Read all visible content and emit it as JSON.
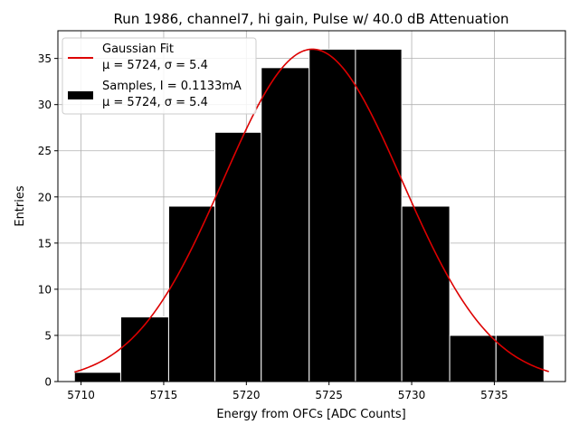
{
  "chart_data": {
    "type": "bar",
    "title": "Run 1986, channel7, hi gain, Pulse w/ 40.0 dB Attenuation",
    "xlabel": "Energy from OFCs [ADC Counts]",
    "ylabel": "Entries",
    "xlim": [
      5708.6,
      5739.3
    ],
    "ylim": [
      0,
      38
    ],
    "xticks": [
      5710,
      5715,
      5720,
      5725,
      5730,
      5735
    ],
    "yticks": [
      0,
      5,
      10,
      15,
      20,
      25,
      30,
      35
    ],
    "grid": true,
    "legend_position": "top-left",
    "histogram": {
      "name": "Samples, I = 0.1133mA",
      "stats": "μ = 5724, σ = 5.4",
      "bin_edges": [
        5709.6,
        5712.4,
        5715.3,
        5718.1,
        5720.9,
        5723.8,
        5726.6,
        5729.4,
        5732.3,
        5735.1,
        5738.0
      ],
      "counts": [
        1,
        7,
        19,
        27,
        34,
        36,
        36,
        19,
        5,
        5
      ],
      "color": "#000000"
    },
    "fit": {
      "name": "Gaussian Fit",
      "stats": "μ = 5724, σ = 5.4",
      "function": "gaussian",
      "amplitude": 36,
      "mu": 5724,
      "sigma": 5.4,
      "x_range": [
        5709.6,
        5738.3
      ],
      "color": "#dd0000"
    }
  }
}
